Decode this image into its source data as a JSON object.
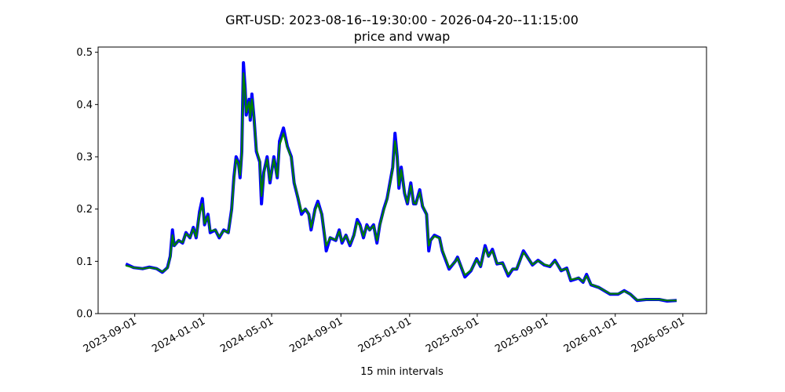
{
  "chart_data": {
    "type": "line",
    "title": "GRT-USD: 2023-08-16--19:30:00 - 2026-04-20--11:15:00",
    "subtitle": "price and vwap",
    "xlabel": "15 min intervals",
    "ylabel": "",
    "xlim": [
      "2023-06-28",
      "2026-06-12"
    ],
    "ylim": [
      0,
      0.51
    ],
    "grid": false,
    "legend": "none",
    "yticks": [
      "0.0",
      "0.1",
      "0.2",
      "0.3",
      "0.4",
      "0.5"
    ],
    "xticks": [
      "2023-09-01",
      "2024-01-01",
      "2024-05-01",
      "2024-09-01",
      "2025-01-01",
      "2025-05-01",
      "2025-09-01",
      "2026-01-01",
      "2026-05-01"
    ],
    "x": [
      "2023-08-16",
      "2023-08-30",
      "2023-09-15",
      "2023-09-27",
      "2023-10-10",
      "2023-10-20",
      "2023-10-29",
      "2023-11-03",
      "2023-11-07",
      "2023-11-10",
      "2023-11-18",
      "2023-11-25",
      "2023-12-01",
      "2023-12-08",
      "2023-12-14",
      "2023-12-19",
      "2023-12-25",
      "2023-12-30",
      "2024-01-03",
      "2024-01-09",
      "2024-01-13",
      "2024-01-22",
      "2024-01-29",
      "2024-02-06",
      "2024-02-14",
      "2024-02-20",
      "2024-02-24",
      "2024-02-28",
      "2024-03-03",
      "2024-03-06",
      "2024-03-09",
      "2024-03-12",
      "2024-03-15",
      "2024-03-17",
      "2024-03-22",
      "2024-03-24",
      "2024-03-27",
      "2024-03-31",
      "2024-04-04",
      "2024-04-10",
      "2024-04-13",
      "2024-04-17",
      "2024-04-23",
      "2024-04-28",
      "2024-05-05",
      "2024-05-11",
      "2024-05-15",
      "2024-05-22",
      "2024-05-29",
      "2024-06-05",
      "2024-06-10",
      "2024-06-17",
      "2024-06-23",
      "2024-06-30",
      "2024-07-06",
      "2024-07-10",
      "2024-07-17",
      "2024-07-22",
      "2024-07-29",
      "2024-08-04",
      "2024-08-06",
      "2024-08-13",
      "2024-08-23",
      "2024-08-29",
      "2024-09-03",
      "2024-09-10",
      "2024-09-17",
      "2024-09-24",
      "2024-09-30",
      "2024-10-05",
      "2024-10-11",
      "2024-10-17",
      "2024-10-22",
      "2024-10-29",
      "2024-11-04",
      "2024-11-09",
      "2024-11-16",
      "2024-11-22",
      "2024-11-27",
      "2024-12-02",
      "2024-12-06",
      "2024-12-10",
      "2024-12-13",
      "2024-12-17",
      "2024-12-23",
      "2024-12-28",
      "2025-01-03",
      "2025-01-08",
      "2025-01-12",
      "2025-01-19",
      "2025-01-24",
      "2025-01-31",
      "2025-02-04",
      "2025-02-07",
      "2025-02-14",
      "2025-02-23",
      "2025-02-28",
      "2025-03-12",
      "2025-03-23",
      "2025-03-27",
      "2025-04-09",
      "2025-04-20",
      "2025-04-30",
      "2025-05-07",
      "2025-05-15",
      "2025-05-21",
      "2025-05-28",
      "2025-06-05",
      "2025-06-15",
      "2025-06-25",
      "2025-07-03",
      "2025-07-10",
      "2025-07-22",
      "2025-07-31",
      "2025-08-07",
      "2025-08-17",
      "2025-08-28",
      "2025-09-07",
      "2025-09-16",
      "2025-09-27",
      "2025-10-07",
      "2025-10-14",
      "2025-10-28",
      "2025-11-05",
      "2025-11-11",
      "2025-11-19",
      "2025-12-03",
      "2025-12-23",
      "2026-01-06",
      "2026-01-17",
      "2026-01-28",
      "2026-02-09",
      "2026-02-25",
      "2026-03-20",
      "2026-04-03",
      "2026-04-20"
    ],
    "series": [
      {
        "name": "price",
        "color": "#0000ff",
        "values": [
          0.095,
          0.088,
          0.086,
          0.089,
          0.086,
          0.079,
          0.088,
          0.11,
          0.16,
          0.13,
          0.14,
          0.135,
          0.155,
          0.145,
          0.165,
          0.145,
          0.195,
          0.22,
          0.17,
          0.19,
          0.155,
          0.16,
          0.145,
          0.16,
          0.155,
          0.2,
          0.26,
          0.3,
          0.29,
          0.26,
          0.31,
          0.48,
          0.43,
          0.38,
          0.41,
          0.37,
          0.42,
          0.37,
          0.31,
          0.29,
          0.21,
          0.27,
          0.3,
          0.25,
          0.3,
          0.26,
          0.33,
          0.355,
          0.32,
          0.3,
          0.25,
          0.22,
          0.19,
          0.2,
          0.19,
          0.16,
          0.2,
          0.215,
          0.19,
          0.14,
          0.12,
          0.145,
          0.14,
          0.16,
          0.135,
          0.15,
          0.13,
          0.15,
          0.18,
          0.17,
          0.145,
          0.17,
          0.16,
          0.17,
          0.135,
          0.17,
          0.2,
          0.22,
          0.25,
          0.28,
          0.345,
          0.3,
          0.24,
          0.28,
          0.23,
          0.21,
          0.25,
          0.21,
          0.21,
          0.237,
          0.205,
          0.19,
          0.12,
          0.14,
          0.15,
          0.145,
          0.12,
          0.085,
          0.1,
          0.108,
          0.07,
          0.082,
          0.105,
          0.09,
          0.13,
          0.11,
          0.123,
          0.095,
          0.097,
          0.072,
          0.085,
          0.085,
          0.12,
          0.105,
          0.093,
          0.102,
          0.093,
          0.09,
          0.102,
          0.082,
          0.087,
          0.063,
          0.068,
          0.06,
          0.075,
          0.055,
          0.05,
          0.037,
          0.037,
          0.044,
          0.037,
          0.025,
          0.027,
          0.027,
          0.024,
          0.025
        ]
      },
      {
        "name": "vwap",
        "color": "#008000",
        "values": [
          0.092,
          0.088,
          0.086,
          0.088,
          0.086,
          0.08,
          0.087,
          0.108,
          0.15,
          0.13,
          0.14,
          0.136,
          0.153,
          0.146,
          0.162,
          0.147,
          0.19,
          0.21,
          0.172,
          0.186,
          0.158,
          0.16,
          0.147,
          0.159,
          0.155,
          0.198,
          0.255,
          0.295,
          0.288,
          0.265,
          0.305,
          0.46,
          0.425,
          0.385,
          0.405,
          0.375,
          0.41,
          0.37,
          0.315,
          0.292,
          0.225,
          0.268,
          0.295,
          0.255,
          0.295,
          0.262,
          0.322,
          0.345,
          0.318,
          0.298,
          0.252,
          0.222,
          0.195,
          0.2,
          0.19,
          0.165,
          0.197,
          0.21,
          0.19,
          0.145,
          0.13,
          0.145,
          0.141,
          0.157,
          0.138,
          0.149,
          0.133,
          0.149,
          0.175,
          0.168,
          0.148,
          0.168,
          0.16,
          0.168,
          0.14,
          0.168,
          0.197,
          0.218,
          0.247,
          0.277,
          0.33,
          0.298,
          0.245,
          0.275,
          0.232,
          0.212,
          0.245,
          0.212,
          0.21,
          0.232,
          0.207,
          0.19,
          0.13,
          0.14,
          0.148,
          0.144,
          0.122,
          0.088,
          0.099,
          0.106,
          0.074,
          0.083,
          0.103,
          0.091,
          0.125,
          0.11,
          0.12,
          0.096,
          0.096,
          0.075,
          0.085,
          0.086,
          0.117,
          0.105,
          0.094,
          0.101,
          0.094,
          0.091,
          0.1,
          0.083,
          0.086,
          0.065,
          0.068,
          0.061,
          0.072,
          0.056,
          0.05,
          0.038,
          0.038,
          0.043,
          0.037,
          0.026,
          0.027,
          0.027,
          0.025,
          0.025
        ]
      }
    ]
  }
}
